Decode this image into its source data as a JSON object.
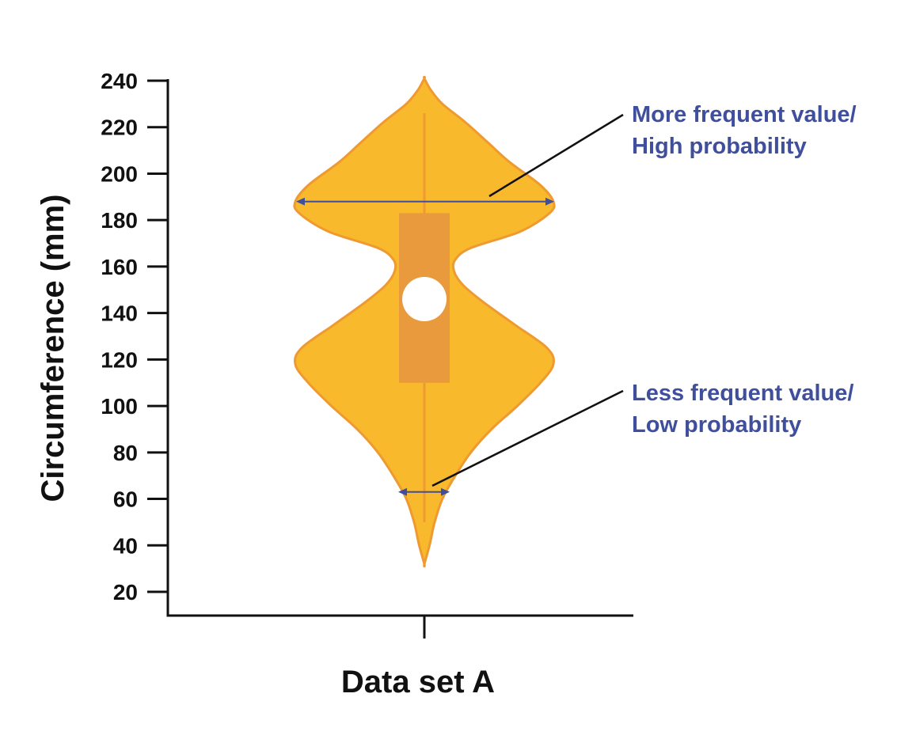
{
  "chart_data": {
    "type": "violin",
    "ylabel": "Circumference (mm)",
    "xlabel": "",
    "categories": [
      "Data set A"
    ],
    "yticks": [
      20,
      40,
      60,
      80,
      100,
      120,
      140,
      160,
      180,
      200,
      220,
      240
    ],
    "ylim": [
      20,
      240
    ],
    "violin": {
      "category": "Data set A",
      "min": 32,
      "max": 241,
      "whisker_low": 50,
      "whisker_high": 226,
      "q1": 110,
      "q3": 183,
      "median": 146,
      "density_profile": [
        [
          32,
          0.0
        ],
        [
          40,
          0.04
        ],
        [
          50,
          0.08
        ],
        [
          60,
          0.14
        ],
        [
          70,
          0.24
        ],
        [
          80,
          0.36
        ],
        [
          90,
          0.52
        ],
        [
          100,
          0.72
        ],
        [
          110,
          0.9
        ],
        [
          118,
          1.0
        ],
        [
          125,
          0.95
        ],
        [
          135,
          0.7
        ],
        [
          145,
          0.45
        ],
        [
          152,
          0.3
        ],
        [
          158,
          0.23
        ],
        [
          163,
          0.24
        ],
        [
          168,
          0.36
        ],
        [
          175,
          0.74
        ],
        [
          183,
          0.97
        ],
        [
          188,
          1.0
        ],
        [
          195,
          0.9
        ],
        [
          205,
          0.66
        ],
        [
          213,
          0.5
        ],
        [
          222,
          0.32
        ],
        [
          230,
          0.14
        ],
        [
          236,
          0.05
        ],
        [
          241,
          0.0
        ]
      ]
    },
    "annotations": [
      {
        "line1": "More frequent value/",
        "line2": "High probability",
        "at_value": 188
      },
      {
        "line1": "Less frequent value/",
        "line2": "Low probability",
        "at_value": 63
      }
    ],
    "colors": {
      "violin_fill": "#F8B92D",
      "violin_stroke": "#EE9A31",
      "box_fill": "#E89A3C",
      "median_dot": "#FFFFFF",
      "annotation_text": "#3F4F9E",
      "axis": "#111111"
    },
    "grid": false
  }
}
